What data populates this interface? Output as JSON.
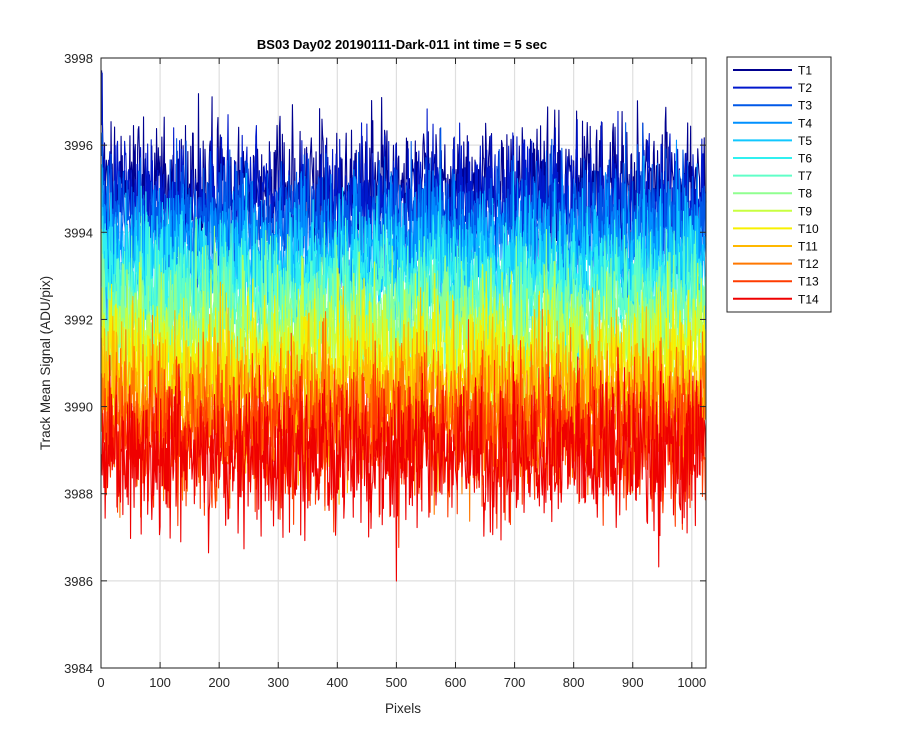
{
  "chart_data": {
    "type": "line",
    "title": "BS03 Day02 20190111-Dark-011 int time = 5 sec",
    "xlabel": "Pixels",
    "ylabel": "Track Mean Signal (ADU/pix)",
    "xlim": [
      0,
      1024
    ],
    "ylim": [
      3984,
      3998
    ],
    "xticks": [
      "0",
      "100",
      "200",
      "300",
      "400",
      "500",
      "600",
      "700",
      "800",
      "900",
      "1000"
    ],
    "yticks": [
      "3984",
      "3986",
      "3988",
      "3990",
      "3992",
      "3994",
      "3996",
      "3998"
    ],
    "grid": true,
    "legend_position": "outside-right-top",
    "n_points": 1024,
    "series": [
      {
        "name": "T1",
        "color": "#00008f",
        "mean": 3995.1,
        "noise_sd": 0.75
      },
      {
        "name": "T2",
        "color": "#0018cc",
        "mean": 3994.7,
        "noise_sd": 0.75
      },
      {
        "name": "T3",
        "color": "#0058e8",
        "mean": 3994.2,
        "noise_sd": 0.75
      },
      {
        "name": "T4",
        "color": "#0090ff",
        "mean": 3993.7,
        "noise_sd": 0.75
      },
      {
        "name": "T5",
        "color": "#10c8ff",
        "mean": 3993.2,
        "noise_sd": 0.75
      },
      {
        "name": "T6",
        "color": "#30f0f0",
        "mean": 3992.8,
        "noise_sd": 0.75
      },
      {
        "name": "T7",
        "color": "#60ffc8",
        "mean": 3992.3,
        "noise_sd": 0.75
      },
      {
        "name": "T8",
        "color": "#90ff90",
        "mean": 3991.8,
        "noise_sd": 0.75
      },
      {
        "name": "T9",
        "color": "#c8ff40",
        "mean": 3991.3,
        "noise_sd": 0.75
      },
      {
        "name": "T10",
        "color": "#f8f000",
        "mean": 3990.8,
        "noise_sd": 0.8
      },
      {
        "name": "T11",
        "color": "#ffb800",
        "mean": 3990.3,
        "noise_sd": 0.8
      },
      {
        "name": "T12",
        "color": "#ff7800",
        "mean": 3989.8,
        "noise_sd": 0.8
      },
      {
        "name": "T13",
        "color": "#ff3c00",
        "mean": 3989.3,
        "noise_sd": 0.8
      },
      {
        "name": "T14",
        "color": "#ef0000",
        "mean": 3988.9,
        "noise_sd": 0.85
      }
    ]
  }
}
